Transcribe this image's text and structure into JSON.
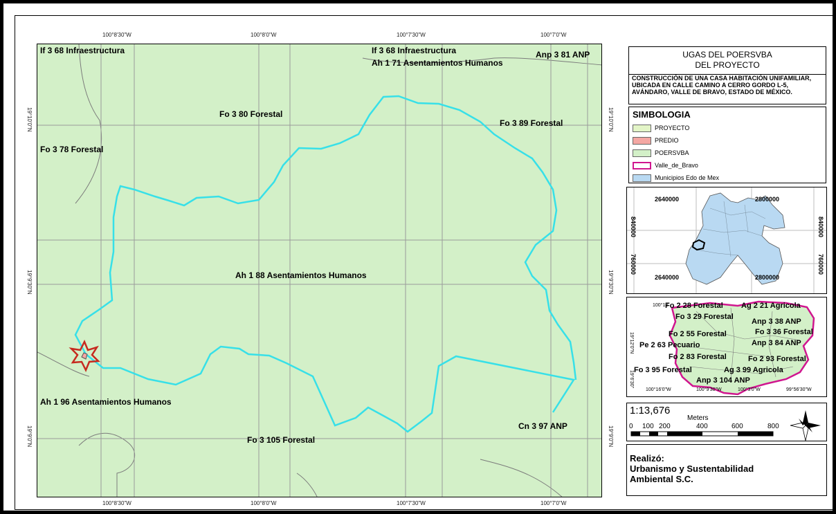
{
  "map": {
    "zone_labels": [
      {
        "text": "If 3 68 Infraestructura"
      },
      {
        "text": "If 3 68 Infraestructura"
      },
      {
        "text": "Anp 3 81 ANP"
      },
      {
        "text": "Ah 1 71 Asentamientos Humanos"
      },
      {
        "text": "Fo 3 80 Forestal"
      },
      {
        "text": "Fo 3 89 Forestal"
      },
      {
        "text": "Fo 3 78 Forestal"
      },
      {
        "text": "Ah 1 88 Asentamientos Humanos"
      },
      {
        "text": "Ah 1 96 Asentamientos Humanos"
      },
      {
        "text": "Cn 3 97 ANP"
      },
      {
        "text": "Fo 3 105 Forestal"
      }
    ],
    "lon_labels": [
      "100°8'30\"W",
      "100°8'0\"W",
      "100°7'30\"W",
      "100°7'0\"W"
    ],
    "lat_labels": [
      "19°10'0\"N",
      "19°9'30\"N",
      "19°9'0\"N"
    ],
    "colors": {
      "poersvba": "#d3f0c8",
      "proyecto_boundary": "#37e0e8",
      "grid": "#9a9a9a"
    }
  },
  "legend_panel": {
    "title_line1": "UGAS DEL POERSVBA",
    "title_line2": "DEL PROYECTO",
    "description": "CONSTRUCCIÓN DE UNA CASA HABITACIÓN UNIFAMILIAR, UBICADA EN CALLE CAMINO A CERRO GORDO L-5, AVÁNDARO, VALLE DE BRAVO, ESTADO DE MÉXICO.",
    "legend_title": "SIMBOLOGIA",
    "legend_items": [
      {
        "label": "PROYECTO",
        "color": "#e3f5c7"
      },
      {
        "label": "PREDIO",
        "color": "#f4a7a3"
      },
      {
        "label": "POERSVBA",
        "color": "#d3f0c8"
      },
      {
        "label": "Valle_de_Bravo",
        "color": "#d0168f"
      },
      {
        "label": "Municipios Edo de Mex",
        "color": "#b9d9f2"
      }
    ]
  },
  "location_map": {
    "x_labels": [
      "2640000",
      "2800000"
    ],
    "y_labels": [
      "840000",
      "760000"
    ]
  },
  "inset_map": {
    "zone_labels": [
      "Fo 2 28 Forestal",
      "Ag 2 21 Agricola",
      "Fo 3 29 Forestal",
      "Anp 3 38 ANP",
      "Fo 2 55 Forestal",
      "Fo 3 36 Forestal",
      "Anp 3 84 ANP",
      "Pe 2 63 Pecuario",
      "Fo 2 83 Forestal",
      "Fo 2 93 Forestal",
      "Fo 3 95 Forestal",
      "Ag 3 99 Agricola",
      "Anp 3 104 ANP"
    ],
    "coord_labels": [
      "100°18'",
      "19°12'0\"N",
      "19°6'30\"",
      "100°16'0\"W",
      "100°9'30\"W",
      "100°3'0\"W",
      "99°56'30\"W"
    ]
  },
  "scale": {
    "ratio": "1:13,676",
    "unit": "Meters",
    "ticks": [
      "0",
      "100",
      "200",
      "400",
      "600",
      "800"
    ]
  },
  "credits": {
    "line1": "Realizó:",
    "line2": "Urbanismo y Sustentabilidad",
    "line3": "Ambiental S.C."
  }
}
